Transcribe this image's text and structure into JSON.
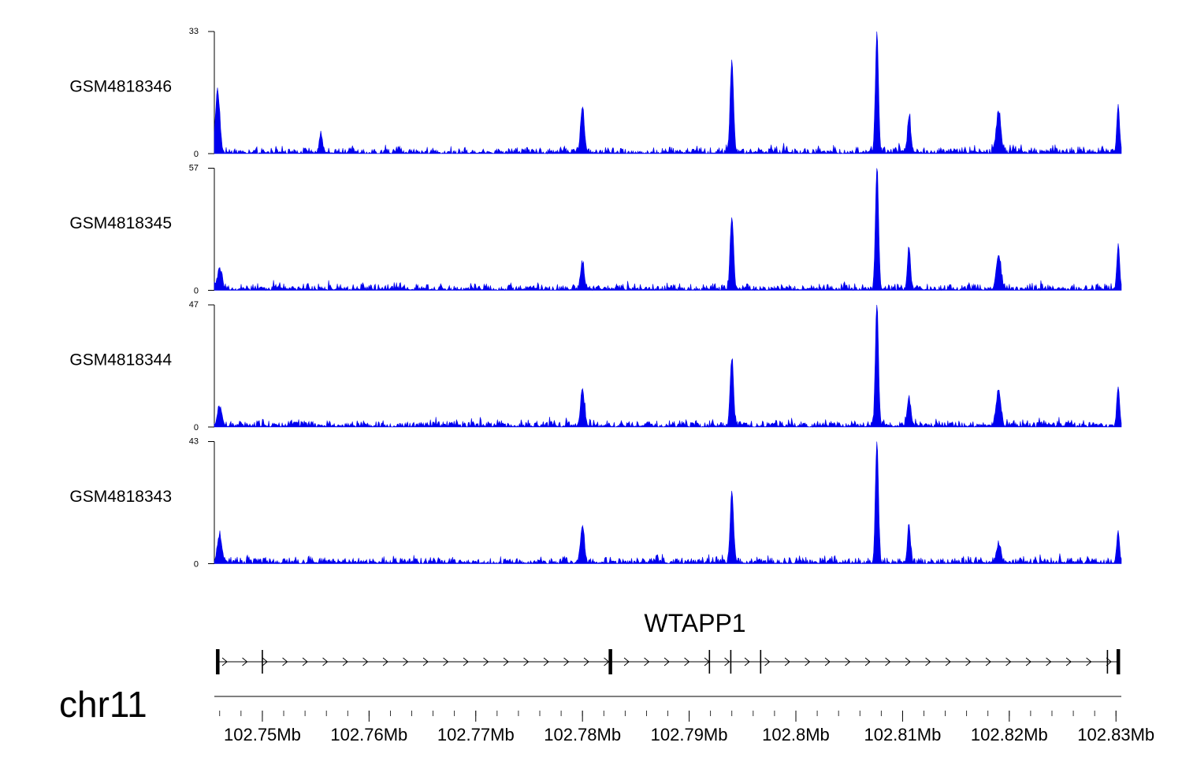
{
  "chart_data": {
    "type": "area",
    "title": "",
    "chromosome": "chr11",
    "x_unit": "Mb",
    "xlim": [
      102.7455,
      102.8305
    ],
    "x_ticks": [
      {
        "value": 102.75,
        "label": "102.75Mb"
      },
      {
        "value": 102.76,
        "label": "102.76Mb"
      },
      {
        "value": 102.77,
        "label": "102.77Mb"
      },
      {
        "value": 102.78,
        "label": "102.78Mb"
      },
      {
        "value": 102.79,
        "label": "102.79Mb"
      },
      {
        "value": 102.8,
        "label": "102.8Mb"
      },
      {
        "value": 102.81,
        "label": "102.81Mb"
      },
      {
        "value": 102.82,
        "label": "102.82Mb"
      },
      {
        "value": 102.83,
        "label": "102.83Mb"
      }
    ],
    "minor_tick_step": 0.002,
    "fill_color": "#0000ee",
    "baseline_noise": 1.2,
    "series": [
      {
        "name": "GSM4818346",
        "ylim": [
          0,
          33
        ],
        "y_tick_labels": [
          "0",
          "33"
        ],
        "peaks": [
          {
            "pos": 102.7457,
            "height": 9,
            "width": 0.00025
          },
          {
            "pos": 102.7459,
            "height": 10,
            "width": 0.00025
          },
          {
            "pos": 102.7555,
            "height": 5,
            "width": 0.0002
          },
          {
            "pos": 102.78,
            "height": 12,
            "width": 0.00025
          },
          {
            "pos": 102.794,
            "height": 25,
            "width": 0.00022
          },
          {
            "pos": 102.8076,
            "height": 33,
            "width": 0.0002
          },
          {
            "pos": 102.8106,
            "height": 9.5,
            "width": 0.0002
          },
          {
            "pos": 102.819,
            "height": 11,
            "width": 0.0003
          },
          {
            "pos": 102.8302,
            "height": 12.5,
            "width": 0.00018
          }
        ]
      },
      {
        "name": "GSM4818345",
        "ylim": [
          0,
          57
        ],
        "y_tick_labels": [
          "0",
          "57"
        ],
        "peaks": [
          {
            "pos": 102.746,
            "height": 9,
            "width": 0.0003
          },
          {
            "pos": 102.78,
            "height": 12,
            "width": 0.00025
          },
          {
            "pos": 102.794,
            "height": 33,
            "width": 0.00022
          },
          {
            "pos": 102.8076,
            "height": 57,
            "width": 0.0002
          },
          {
            "pos": 102.8106,
            "height": 19.5,
            "width": 0.0002
          },
          {
            "pos": 102.819,
            "height": 16,
            "width": 0.0003
          },
          {
            "pos": 102.8302,
            "height": 19.5,
            "width": 0.00018
          }
        ]
      },
      {
        "name": "GSM4818344",
        "ylim": [
          0,
          47
        ],
        "y_tick_labels": [
          "0",
          "47"
        ],
        "peaks": [
          {
            "pos": 102.746,
            "height": 7,
            "width": 0.0003
          },
          {
            "pos": 102.78,
            "height": 14,
            "width": 0.00025
          },
          {
            "pos": 102.794,
            "height": 25.5,
            "width": 0.00022
          },
          {
            "pos": 102.8076,
            "height": 47,
            "width": 0.0002
          },
          {
            "pos": 102.8106,
            "height": 11,
            "width": 0.0002
          },
          {
            "pos": 102.819,
            "height": 13.5,
            "width": 0.0003
          },
          {
            "pos": 102.8302,
            "height": 14.5,
            "width": 0.00018
          }
        ]
      },
      {
        "name": "GSM4818343",
        "ylim": [
          0,
          43
        ],
        "y_tick_labels": [
          "0",
          "43"
        ],
        "peaks": [
          {
            "pos": 102.746,
            "height": 9.5,
            "width": 0.0003
          },
          {
            "pos": 102.78,
            "height": 13,
            "width": 0.00025
          },
          {
            "pos": 102.794,
            "height": 25,
            "width": 0.00022
          },
          {
            "pos": 102.8076,
            "height": 43,
            "width": 0.0002
          },
          {
            "pos": 102.8106,
            "height": 12.5,
            "width": 0.0002
          },
          {
            "pos": 102.819,
            "height": 6.5,
            "width": 0.0003
          },
          {
            "pos": 102.8302,
            "height": 11.5,
            "width": 0.00018
          }
        ]
      }
    ],
    "gene": {
      "name": "WTAPP1",
      "strand": "+",
      "start": 102.7458,
      "end": 102.8302,
      "exons": [
        {
          "pos": 102.7458,
          "bold": true
        },
        {
          "pos": 102.75,
          "bold": false
        },
        {
          "pos": 102.7826,
          "bold": true
        },
        {
          "pos": 102.7919,
          "bold": false
        },
        {
          "pos": 102.7939,
          "bold": false
        },
        {
          "pos": 102.7967,
          "bold": false
        },
        {
          "pos": 102.8292,
          "bold": false
        },
        {
          "pos": 102.8302,
          "bold": true
        }
      ]
    }
  }
}
